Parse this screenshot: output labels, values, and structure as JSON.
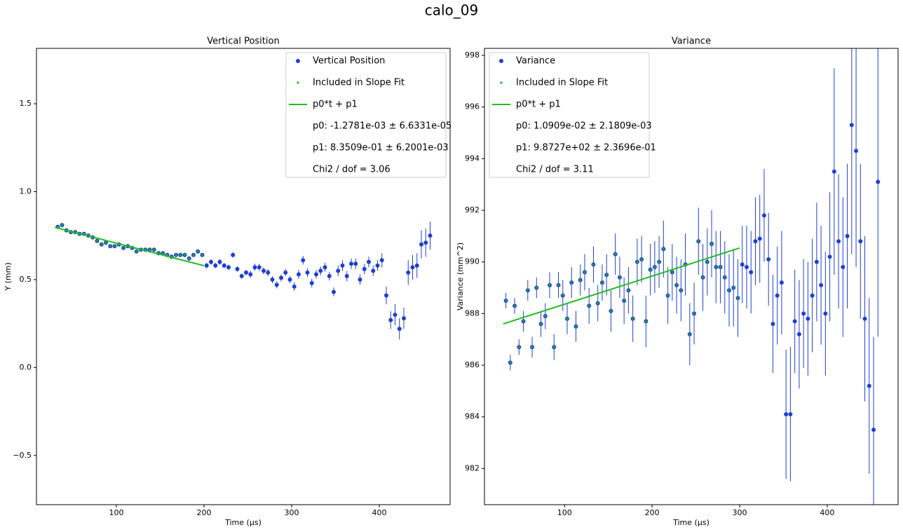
{
  "title": "calo_09",
  "chart_data": [
    {
      "type": "errorbar",
      "title": "Vertical Position",
      "x_label": "Time (μs)",
      "y_label": "Y (mm)",
      "xlim": [
        8.8,
        480.8
      ],
      "ylim": [
        -0.78,
        1.815
      ],
      "xticks": [
        100,
        200,
        300,
        400
      ],
      "yticks": [
        {
          "value": -0.5,
          "label": "−0.5"
        },
        {
          "value": 0,
          "label": "0.0"
        },
        0.5,
        {
          "value": 1,
          "label": "1.0"
        },
        1.5
      ],
      "legend": "upper right",
      "x": [
        33,
        38,
        43,
        48,
        53,
        58,
        63,
        68,
        73,
        78,
        83,
        88,
        93,
        98,
        103,
        108,
        113,
        118,
        123,
        128,
        133,
        138,
        143,
        148,
        153,
        158,
        163,
        168,
        173,
        178,
        183,
        188,
        193,
        198,
        203,
        208,
        213,
        218,
        223,
        228,
        233,
        238,
        243,
        248,
        253,
        258,
        263,
        268,
        273,
        278,
        283,
        288,
        293,
        298,
        303,
        308,
        313,
        318,
        323,
        328,
        333,
        338,
        343,
        348,
        353,
        358,
        363,
        368,
        373,
        378,
        383,
        388,
        393,
        398,
        403,
        408,
        413,
        418,
        423,
        428,
        433,
        438,
        443,
        448,
        453,
        458
      ],
      "series": [
        {
          "name": "Vertical Position",
          "color": "#1f3fd0",
          "values": [
            0.8,
            0.81,
            0.78,
            0.77,
            0.77,
            0.76,
            0.76,
            0.75,
            0.74,
            0.72,
            0.7,
            0.71,
            0.69,
            0.69,
            0.7,
            0.68,
            0.69,
            0.68,
            0.66,
            0.67,
            0.67,
            0.67,
            0.67,
            0.65,
            0.65,
            0.64,
            0.63,
            0.64,
            0.64,
            0.64,
            0.62,
            0.64,
            0.66,
            0.64,
            0.58,
            0.6,
            0.58,
            0.6,
            0.58,
            0.57,
            0.64,
            0.56,
            0.52,
            0.54,
            0.53,
            0.57,
            0.57,
            0.55,
            0.54,
            0.5,
            0.47,
            0.51,
            0.54,
            0.5,
            0.46,
            0.53,
            0.61,
            0.54,
            0.48,
            0.53,
            0.55,
            0.57,
            0.52,
            0.43,
            0.55,
            0.58,
            0.52,
            0.59,
            0.59,
            0.5,
            0.56,
            0.6,
            0.55,
            0.58,
            0.61,
            0.41,
            0.27,
            0.3,
            0.22,
            0.28,
            0.54,
            0.57,
            0.58,
            0.7,
            0.71,
            0.75
          ],
          "errors": [
            0.01,
            0.01,
            0.01,
            0.01,
            0.01,
            0.01,
            0.01,
            0.01,
            0.01,
            0.01,
            0.01,
            0.01,
            0.01,
            0.01,
            0.01,
            0.01,
            0.01,
            0.01,
            0.01,
            0.01,
            0.012,
            0.012,
            0.012,
            0.012,
            0.012,
            0.012,
            0.012,
            0.012,
            0.012,
            0.012,
            0.012,
            0.012,
            0.012,
            0.012,
            0.015,
            0.015,
            0.015,
            0.015,
            0.015,
            0.015,
            0.015,
            0.015,
            0.015,
            0.015,
            0.02,
            0.02,
            0.02,
            0.02,
            0.02,
            0.02,
            0.02,
            0.02,
            0.02,
            0.02,
            0.025,
            0.025,
            0.025,
            0.025,
            0.025,
            0.025,
            0.025,
            0.025,
            0.025,
            0.025,
            0.03,
            0.03,
            0.03,
            0.03,
            0.03,
            0.03,
            0.03,
            0.03,
            0.03,
            0.03,
            0.04,
            0.05,
            0.05,
            0.06,
            0.06,
            0.06,
            0.07,
            0.07,
            0.07,
            0.08,
            0.08,
            0.08
          ]
        },
        {
          "name": "Included in Slope Fit",
          "color": "#22bb22",
          "x_range": [
            30,
            200
          ]
        },
        {
          "name": "p0*t + p1",
          "color": "#22bb22",
          "x": [
            30,
            200
          ],
          "values": [
            0.797,
            0.579
          ]
        }
      ],
      "legend_notes": [
        "p0: -1.2781e-03 ± 6.6331e-05",
        "p1: 8.3509e-01 ± 6.2001e-03",
        "Chi2 / dof = 3.06"
      ]
    },
    {
      "type": "errorbar",
      "title": "Variance",
      "x_label": "Time (μs)",
      "y_label": "Variance (mm^2)",
      "xlim": [
        8.5,
        481
      ],
      "ylim": [
        980.6,
        998.27
      ],
      "xticks": [
        100,
        200,
        300,
        400
      ],
      "yticks": [
        982,
        984,
        986,
        988,
        990,
        992,
        994,
        996,
        998
      ],
      "legend": "upper left",
      "x": [
        33,
        38,
        43,
        48,
        53,
        58,
        63,
        68,
        73,
        78,
        83,
        88,
        93,
        98,
        103,
        108,
        113,
        118,
        123,
        128,
        133,
        138,
        143,
        148,
        153,
        158,
        163,
        168,
        173,
        178,
        183,
        188,
        193,
        198,
        203,
        208,
        213,
        218,
        223,
        228,
        233,
        238,
        243,
        248,
        253,
        258,
        263,
        268,
        273,
        278,
        283,
        288,
        293,
        298,
        303,
        308,
        313,
        318,
        323,
        328,
        333,
        338,
        343,
        348,
        353,
        358,
        363,
        368,
        373,
        378,
        383,
        388,
        393,
        398,
        403,
        408,
        413,
        418,
        423,
        428,
        433,
        438,
        443,
        448,
        453,
        458
      ],
      "series": [
        {
          "name": "Variance",
          "color": "#1f3fd0",
          "values": [
            988.5,
            986.1,
            988.3,
            986.7,
            987.7,
            988.9,
            986.7,
            989.0,
            987.6,
            987.9,
            989.1,
            986.7,
            989.1,
            988.7,
            987.8,
            989.2,
            987.5,
            989.3,
            989.6,
            988.3,
            989.9,
            988.4,
            989.2,
            989.5,
            988.1,
            990.3,
            989.4,
            988.5,
            988.9,
            987.8,
            990.0,
            990.1,
            987.7,
            989.7,
            989.8,
            990.0,
            990.5,
            988.7,
            989.6,
            989.1,
            988.9,
            989.9,
            987.2,
            988.0,
            990.8,
            989.4,
            990.0,
            990.7,
            989.8,
            989.8,
            989.4,
            988.9,
            989.0,
            988.6,
            989.9,
            989.8,
            989.6,
            990.8,
            990.9,
            991.8,
            990.1,
            987.6,
            988.7,
            989.2,
            984.1,
            984.1,
            987.7,
            987.2,
            988.0,
            987.8,
            988.7,
            990.0,
            989.1,
            988.0,
            990.2,
            993.5,
            990.8,
            989.8,
            991.0,
            995.3,
            994.3,
            990.8,
            987.8,
            985.2,
            983.5,
            993.1
          ],
          "errors": [
            0.3,
            0.3,
            0.3,
            0.3,
            0.4,
            0.4,
            0.4,
            0.4,
            0.5,
            0.5,
            0.5,
            0.5,
            0.5,
            0.6,
            0.6,
            0.6,
            0.6,
            0.6,
            0.7,
            0.7,
            0.7,
            0.7,
            0.7,
            0.8,
            0.8,
            0.8,
            0.8,
            0.9,
            0.9,
            0.9,
            0.9,
            0.9,
            1.0,
            1.0,
            1.0,
            1.0,
            1.1,
            1.1,
            1.1,
            1.1,
            1.2,
            1.2,
            1.2,
            1.2,
            1.3,
            1.3,
            1.3,
            1.3,
            1.4,
            1.4,
            1.4,
            1.4,
            1.5,
            1.5,
            1.5,
            1.6,
            1.6,
            1.7,
            1.7,
            1.8,
            1.8,
            1.9,
            1.9,
            2.0,
            2.5,
            2.6,
            2.0,
            2.1,
            2.1,
            2.2,
            2.2,
            2.3,
            2.3,
            2.4,
            2.5,
            4.0,
            2.6,
            2.7,
            2.8,
            5.0,
            4.5,
            3.0,
            3.2,
            3.4,
            3.6,
            6.0
          ]
        },
        {
          "name": "Included in Slope Fit",
          "color": "#22bb22",
          "x_range": [
            30,
            300
          ]
        },
        {
          "name": "p0*t + p1",
          "color": "#22bb22",
          "x": [
            30,
            300
          ],
          "values": [
            987.6,
            990.54
          ]
        }
      ],
      "legend_notes": [
        "p0: 1.0909e-02 ± 2.1809e-03",
        "p1: 9.8727e+02 ± 2.3696e-01",
        "Chi2 / dof = 3.11"
      ]
    }
  ]
}
